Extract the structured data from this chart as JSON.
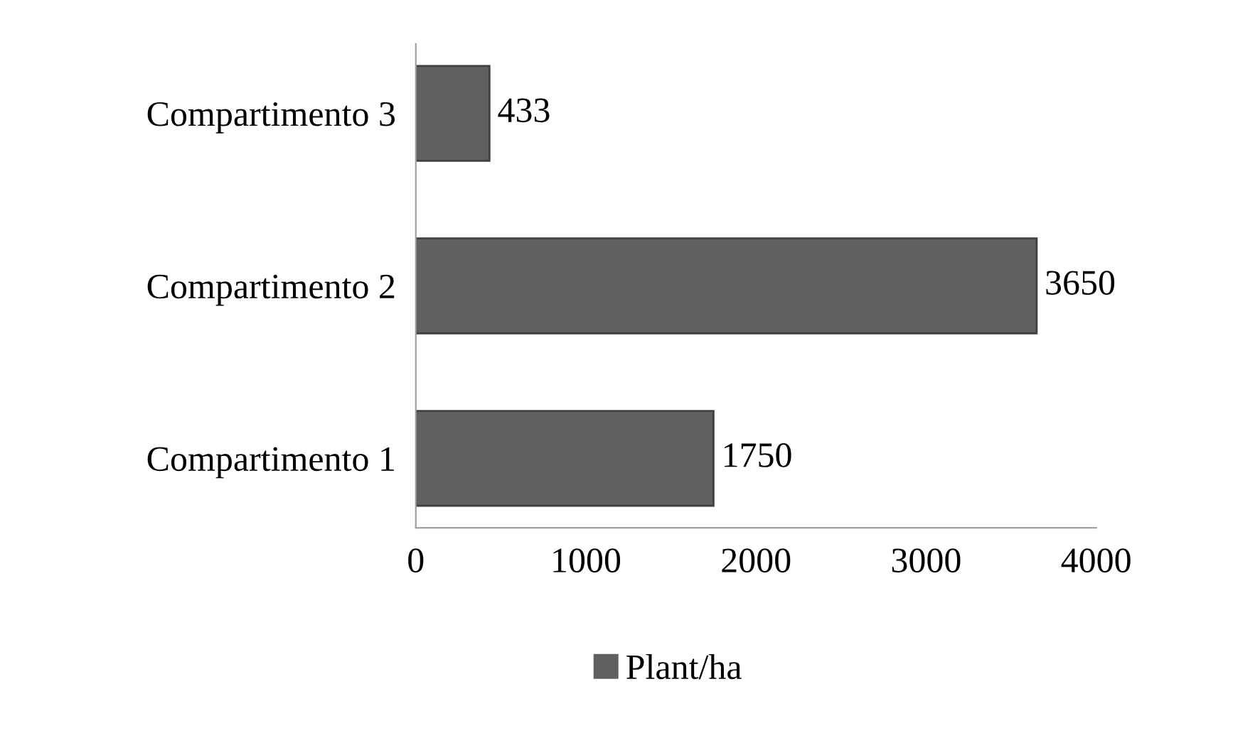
{
  "chart_data": {
    "type": "bar",
    "orientation": "horizontal",
    "categories": [
      "Compartimento 3",
      "Compartimento 2",
      "Compartimento 1"
    ],
    "series": [
      {
        "name": "Plant/ha",
        "color": "#606060",
        "values": [
          433,
          3650,
          1750
        ]
      }
    ],
    "xlim": [
      0,
      4000
    ],
    "xticks": [
      0,
      1000,
      2000,
      3000,
      4000
    ],
    "data_labels": true,
    "legend": "bottom",
    "grid": false
  }
}
